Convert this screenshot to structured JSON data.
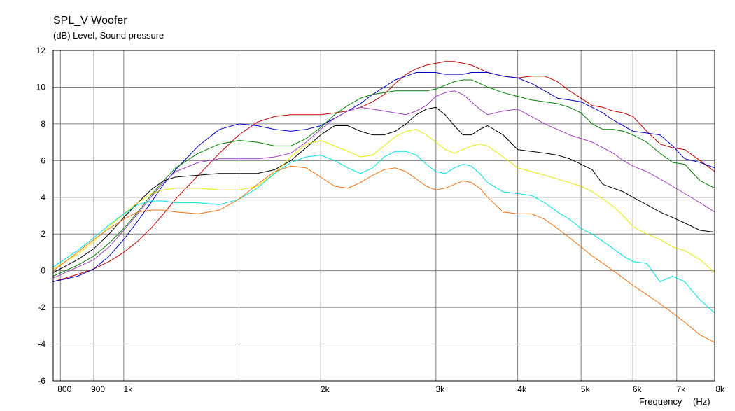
{
  "chart_data": {
    "type": "line",
    "title": "SPL_V Woofer",
    "subtitle": "(dB)  Level, Sound pressure",
    "xlabel": "Frequency",
    "xunit": "(Hz)",
    "x_scale": "log",
    "xlim": [
      780,
      8000
    ],
    "ylim": [
      -6,
      12
    ],
    "grid": true,
    "x_ticks": [
      {
        "value": 800,
        "label": "800",
        "major": true
      },
      {
        "value": 900,
        "label": "900",
        "major": true
      },
      {
        "value": 1000,
        "label": "1k",
        "major": true
      },
      {
        "value": 1500,
        "label": "",
        "major": false
      },
      {
        "value": 2000,
        "label": "2k",
        "major": true
      },
      {
        "value": 3000,
        "label": "3k",
        "major": true
      },
      {
        "value": 4000,
        "label": "4k",
        "major": true
      },
      {
        "value": 5000,
        "label": "5k",
        "major": true
      },
      {
        "value": 6000,
        "label": "6k",
        "major": true
      },
      {
        "value": 7000,
        "label": "7k",
        "major": true
      },
      {
        "value": 8000,
        "label": "8k",
        "major": true
      }
    ],
    "y_ticks": [
      12,
      10,
      8,
      6,
      4,
      2,
      0,
      -2,
      -4,
      -6
    ],
    "x": [
      780,
      850,
      900,
      950,
      1000,
      1050,
      1100,
      1150,
      1200,
      1300,
      1400,
      1500,
      1600,
      1700,
      1800,
      1900,
      2000,
      2100,
      2200,
      2300,
      2400,
      2500,
      2600,
      2700,
      2800,
      2900,
      3000,
      3100,
      3200,
      3300,
      3400,
      3500,
      3600,
      3800,
      4000,
      4200,
      4400,
      4600,
      4800,
      5000,
      5200,
      5400,
      5600,
      5800,
      6000,
      6300,
      6600,
      6900,
      7200,
      7600,
      8000
    ],
    "series": [
      {
        "color": "#c00000",
        "values": [
          -0.6,
          -0.2,
          0.1,
          0.5,
          1.0,
          1.6,
          2.3,
          3.1,
          3.9,
          5.2,
          6.4,
          7.4,
          8.1,
          8.4,
          8.5,
          8.5,
          8.5,
          8.6,
          8.7,
          8.9,
          9.2,
          9.6,
          10.2,
          10.7,
          11.0,
          11.2,
          11.3,
          11.4,
          11.4,
          11.3,
          11.2,
          11.0,
          10.8,
          10.6,
          10.5,
          10.6,
          10.6,
          10.3,
          9.8,
          9.4,
          9.0,
          8.9,
          8.7,
          8.6,
          8.4,
          7.6,
          6.9,
          6.7,
          6.6,
          6.0,
          5.4
        ]
      },
      {
        "color": "#0000c0",
        "values": [
          -0.6,
          -0.3,
          0.1,
          0.8,
          1.7,
          2.7,
          3.7,
          4.7,
          5.5,
          6.8,
          7.7,
          8.0,
          7.9,
          7.7,
          7.6,
          7.7,
          7.9,
          8.3,
          8.7,
          9.1,
          9.6,
          10.0,
          10.4,
          10.6,
          10.8,
          10.8,
          10.8,
          10.7,
          10.7,
          10.7,
          10.8,
          10.8,
          10.8,
          10.6,
          10.5,
          10.2,
          9.8,
          9.4,
          9.3,
          9.2,
          8.9,
          8.6,
          8.2,
          7.9,
          7.6,
          7.5,
          7.4,
          6.8,
          6.1,
          5.9,
          5.6
        ]
      },
      {
        "color": "#008000",
        "values": [
          -0.3,
          0.3,
          0.8,
          1.5,
          2.3,
          3.2,
          4.1,
          4.9,
          5.6,
          6.4,
          6.9,
          7.1,
          7.0,
          6.8,
          6.8,
          7.2,
          7.8,
          8.5,
          9.0,
          9.4,
          9.6,
          9.7,
          9.8,
          9.8,
          9.8,
          9.8,
          9.9,
          10.1,
          10.3,
          10.4,
          10.4,
          10.2,
          10.0,
          9.7,
          9.5,
          9.3,
          9.2,
          9.1,
          8.9,
          8.6,
          8.0,
          7.7,
          7.7,
          7.6,
          7.4,
          7.0,
          6.4,
          5.9,
          5.8,
          4.9,
          4.5
        ]
      },
      {
        "color": "#a040c0",
        "values": [
          -0.4,
          0.2,
          0.6,
          1.3,
          2.2,
          3.1,
          4.0,
          4.8,
          5.4,
          5.9,
          6.1,
          6.1,
          6.1,
          6.2,
          6.4,
          7.0,
          7.7,
          8.3,
          8.7,
          8.9,
          8.8,
          8.7,
          8.6,
          8.5,
          8.7,
          9.0,
          9.5,
          9.7,
          9.8,
          9.6,
          9.2,
          8.8,
          8.5,
          8.7,
          8.8,
          8.4,
          8.0,
          7.7,
          7.4,
          7.2,
          7.0,
          6.7,
          6.4,
          6.0,
          5.7,
          5.4,
          5.0,
          4.6,
          4.2,
          3.7,
          3.2
        ]
      },
      {
        "color": "#000000",
        "values": [
          -0.1,
          0.6,
          1.2,
          2.0,
          2.9,
          3.7,
          4.4,
          4.9,
          5.1,
          5.2,
          5.3,
          5.3,
          5.3,
          5.5,
          6.0,
          6.7,
          7.4,
          7.9,
          7.9,
          7.6,
          7.4,
          7.4,
          7.6,
          8.0,
          8.5,
          8.8,
          8.9,
          8.5,
          7.9,
          7.4,
          7.4,
          7.7,
          7.9,
          7.4,
          6.6,
          6.5,
          6.4,
          6.3,
          6.1,
          5.8,
          5.5,
          4.7,
          4.5,
          4.3,
          4.0,
          3.6,
          3.2,
          2.9,
          2.6,
          2.2,
          2.1
        ]
      },
      {
        "color": "#e8e800",
        "values": [
          0.1,
          0.9,
          1.6,
          2.4,
          3.1,
          3.7,
          4.2,
          4.4,
          4.5,
          4.5,
          4.4,
          4.4,
          4.6,
          5.3,
          6.2,
          6.9,
          7.1,
          6.8,
          6.5,
          6.2,
          6.3,
          6.8,
          7.3,
          7.6,
          7.7,
          7.4,
          7.0,
          6.6,
          6.4,
          6.6,
          6.8,
          6.9,
          6.8,
          6.2,
          5.6,
          5.4,
          5.2,
          5.0,
          4.8,
          4.6,
          4.3,
          3.9,
          3.5,
          3.0,
          2.4,
          2.0,
          1.7,
          1.3,
          1.1,
          0.6,
          -0.1
        ]
      },
      {
        "color": "#00e0e0",
        "values": [
          0.2,
          1.1,
          1.8,
          2.5,
          3.1,
          3.6,
          3.8,
          3.8,
          3.7,
          3.7,
          3.6,
          3.9,
          4.5,
          5.3,
          5.9,
          6.2,
          6.3,
          6.0,
          5.6,
          5.3,
          5.6,
          6.2,
          6.5,
          6.5,
          6.3,
          5.8,
          5.4,
          5.3,
          5.6,
          5.8,
          5.7,
          5.3,
          4.8,
          4.3,
          4.2,
          4.1,
          3.7,
          3.2,
          2.8,
          2.3,
          2.0,
          1.6,
          1.2,
          0.8,
          0.5,
          0.4,
          -0.6,
          -0.3,
          -0.6,
          -1.6,
          -2.3
        ]
      },
      {
        "color": "#f07010",
        "values": [
          0.0,
          1.0,
          1.7,
          2.3,
          2.8,
          3.2,
          3.3,
          3.3,
          3.2,
          3.1,
          3.3,
          3.9,
          4.7,
          5.4,
          5.7,
          5.6,
          5.1,
          4.6,
          4.5,
          4.8,
          5.2,
          5.5,
          5.6,
          5.4,
          5.0,
          4.6,
          4.4,
          4.5,
          4.7,
          4.9,
          4.8,
          4.5,
          4.0,
          3.2,
          3.1,
          3.1,
          2.8,
          2.3,
          1.8,
          1.3,
          0.8,
          0.4,
          0.0,
          -0.4,
          -0.8,
          -1.3,
          -1.8,
          -2.3,
          -2.8,
          -3.5,
          -3.9
        ]
      }
    ]
  }
}
